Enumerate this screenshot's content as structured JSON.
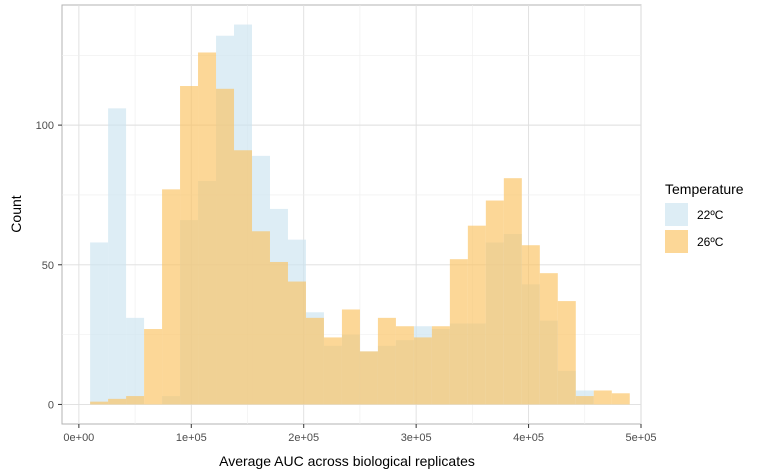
{
  "chart_data": {
    "type": "histogram",
    "xlabel": "Average AUC across biological replicates",
    "ylabel": "Count",
    "xlim": [
      -15000,
      500000
    ],
    "ylim": [
      -7,
      143
    ],
    "x_ticks": [
      0,
      100000,
      200000,
      300000,
      400000,
      500000
    ],
    "x_tick_labels": [
      "0e+00",
      "1e+05",
      "2e+05",
      "3e+05",
      "4e+05",
      "5e+05"
    ],
    "y_ticks": [
      0,
      50,
      100
    ],
    "y_tick_labels": [
      "0",
      "50",
      "100"
    ],
    "grid": true,
    "bin_start": 10000,
    "bin_width": 16000,
    "legend": {
      "title": "Temperature",
      "position": "right"
    },
    "series": [
      {
        "name": "22ºC",
        "color": "#cbe4f0",
        "values": [
          58,
          106,
          31,
          0,
          3,
          66,
          80,
          132,
          136,
          89,
          70,
          59,
          33,
          21,
          25,
          19,
          21,
          23,
          28,
          27,
          29,
          29,
          58,
          61,
          43,
          30,
          12,
          5,
          0
        ]
      },
      {
        "name": "26ºC",
        "color": "#fbc15f",
        "values": [
          1,
          2,
          3,
          27,
          77,
          114,
          126,
          113,
          91,
          62,
          51,
          44,
          31,
          24,
          34,
          19,
          31,
          28,
          24,
          28,
          52,
          64,
          73,
          81,
          57,
          47,
          37,
          3,
          5,
          4
        ]
      }
    ]
  }
}
